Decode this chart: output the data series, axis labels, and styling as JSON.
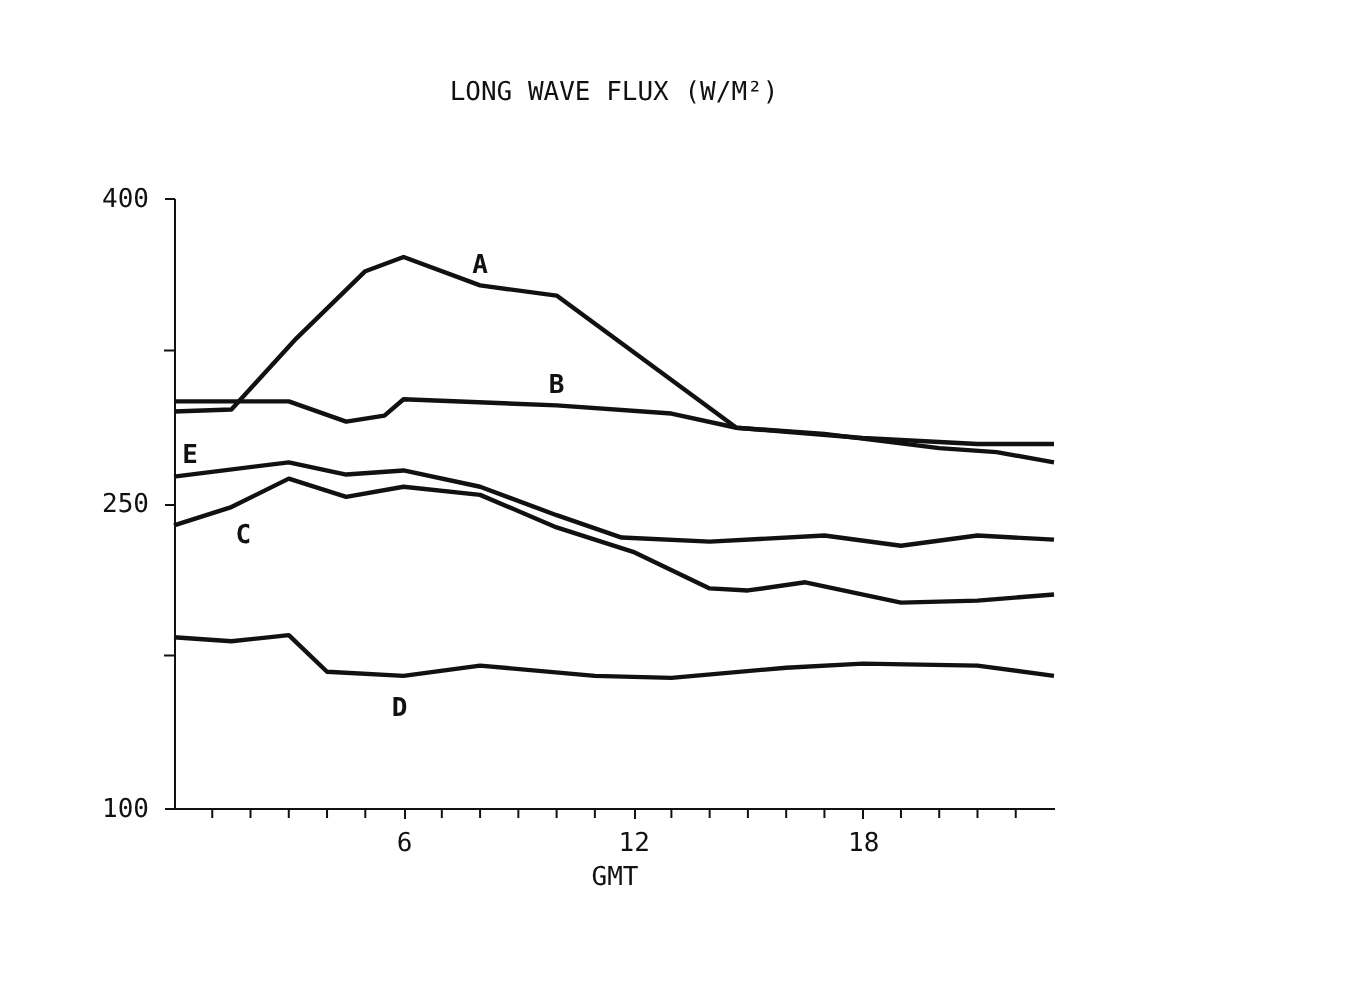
{
  "chart_data": {
    "type": "line",
    "title": "LONG WAVE FLUX (W/M²)",
    "xlabel": "GMT",
    "xlim": [
      0,
      23
    ],
    "ylim": [
      100,
      400
    ],
    "xticks": [
      {
        "value": 1,
        "label": null
      },
      {
        "value": 2,
        "label": null
      },
      {
        "value": 3,
        "label": null
      },
      {
        "value": 4,
        "label": null
      },
      {
        "value": 5,
        "label": null
      },
      6,
      {
        "value": 7,
        "label": null
      },
      {
        "value": 8,
        "label": null
      },
      {
        "value": 9,
        "label": null
      },
      {
        "value": 10,
        "label": null
      },
      {
        "value": 11,
        "label": null
      },
      12,
      {
        "value": 13,
        "label": null
      },
      {
        "value": 14,
        "label": null
      },
      {
        "value": 15,
        "label": null
      },
      {
        "value": 16,
        "label": null
      },
      {
        "value": 17,
        "label": null
      },
      18,
      {
        "value": 19,
        "label": null
      },
      {
        "value": 20,
        "label": null
      },
      {
        "value": 21,
        "label": null
      },
      {
        "value": 22,
        "label": null
      }
    ],
    "yticks": [
      100,
      {
        "value": 175,
        "label": null
      },
      250,
      {
        "value": 325,
        "label": null
      },
      400
    ],
    "grid": false,
    "legend": false,
    "marker": "none",
    "line_style": "solid",
    "series": [
      {
        "name": "A",
        "color": "#111111",
        "x": [
          0,
          1.5,
          3.2,
          5,
          6,
          8,
          10,
          14.7,
          18,
          21,
          23
        ],
        "values": [
          295,
          296,
          331,
          364,
          371,
          357,
          352,
          287,
          282,
          279,
          279
        ]
      },
      {
        "name": "B",
        "color": "#111111",
        "x": [
          0,
          3,
          4.5,
          5.5,
          6,
          10,
          13,
          14.7,
          17,
          20,
          21.5,
          23
        ],
        "values": [
          300,
          300,
          290,
          293,
          301,
          298,
          294,
          287,
          284,
          277,
          275,
          270
        ]
      },
      {
        "name": "E",
        "color": "#111111",
        "x": [
          0,
          3,
          4.5,
          6,
          8,
          10,
          11.7,
          14,
          17,
          19,
          21,
          23
        ],
        "values": [
          263,
          270,
          264,
          266,
          258,
          244,
          233,
          231,
          234,
          229,
          234,
          232
        ]
      },
      {
        "name": "C",
        "color": "#111111",
        "x": [
          0,
          1.5,
          3,
          4.5,
          6,
          8,
          10,
          12,
          14,
          15,
          16.5,
          19,
          21,
          23
        ],
        "values": [
          239,
          248,
          262,
          253,
          258,
          254,
          238,
          226,
          208,
          207,
          211,
          201,
          202,
          205
        ]
      },
      {
        "name": "D",
        "color": "#111111",
        "x": [
          0,
          1.5,
          3,
          4,
          6,
          8,
          11,
          13,
          16,
          18,
          21,
          23
        ],
        "values": [
          184,
          182,
          185,
          167,
          165,
          170,
          165,
          164,
          169,
          171,
          170,
          165
        ]
      }
    ]
  }
}
